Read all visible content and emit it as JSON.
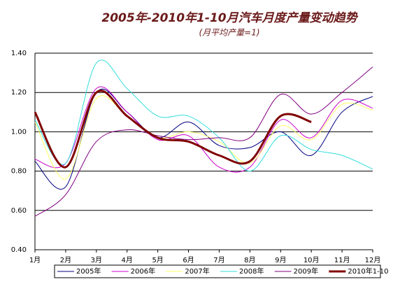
{
  "chart_data": {
    "type": "line",
    "title": "2005年-2010年1-10月汽车月度产量变动趋势",
    "subtitle": "(月平均产量=1)",
    "categories": [
      "1月",
      "2月",
      "3月",
      "4月",
      "5月",
      "6月",
      "7月",
      "8月",
      "9月",
      "10月",
      "11月",
      "12月"
    ],
    "series": [
      {
        "name": "2005年",
        "color": "#000080",
        "values": [
          0.85,
          0.72,
          1.2,
          1.1,
          0.97,
          1.05,
          0.93,
          0.92,
          1.0,
          0.88,
          1.1,
          1.18
        ]
      },
      {
        "name": "2006年",
        "color": "#cc00cc",
        "values": [
          0.86,
          0.84,
          1.22,
          1.1,
          0.96,
          0.98,
          0.82,
          0.82,
          1.06,
          0.97,
          1.16,
          1.12
        ]
      },
      {
        "name": "2007年",
        "color": "#ffff66",
        "values": [
          1.05,
          0.76,
          1.17,
          1.08,
          0.97,
          1.0,
          0.95,
          0.84,
          1.03,
          0.96,
          1.14,
          1.11
        ]
      },
      {
        "name": "2008年",
        "color": "#33dddd",
        "values": [
          1.06,
          0.84,
          1.35,
          1.22,
          1.08,
          1.08,
          0.97,
          0.8,
          0.98,
          0.91,
          0.88,
          0.81
        ]
      },
      {
        "name": "2009年",
        "color": "#800080",
        "values": [
          0.57,
          0.68,
          0.95,
          1.01,
          0.98,
          0.96,
          0.97,
          0.97,
          1.19,
          1.09,
          1.2,
          1.33
        ]
      },
      {
        "name": "2010年1-10",
        "color": "#800000",
        "values": [
          1.1,
          0.82,
          1.2,
          1.08,
          0.97,
          0.95,
          0.88,
          0.85,
          1.08,
          1.05,
          null,
          null
        ]
      }
    ],
    "ylim": [
      0.4,
      1.4
    ],
    "yticks": [
      {
        "value": 0.4,
        "label": "0.40"
      },
      {
        "value": 0.6,
        "label": "0.60"
      },
      {
        "value": 0.8,
        "label": "0.80"
      },
      {
        "value": 1.0,
        "label": "1.00"
      },
      {
        "value": 1.2,
        "label": "1.20"
      },
      {
        "value": 1.4,
        "label": "1.40"
      }
    ],
    "grid": true,
    "legend": "bottom"
  }
}
